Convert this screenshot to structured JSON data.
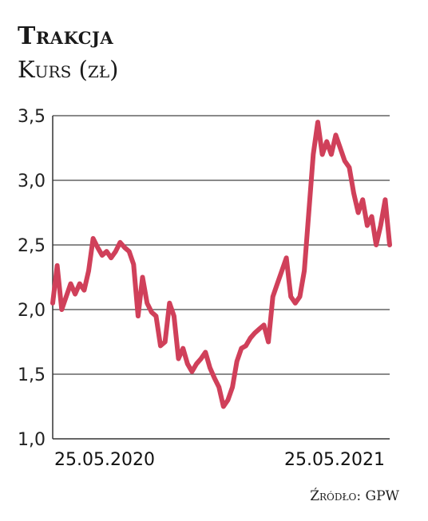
{
  "chart_data": {
    "type": "line",
    "title": "Trakcja",
    "subtitle": "Kurs (zł)",
    "ylim": [
      1.0,
      3.5
    ],
    "y_ticks": [
      "3,5",
      "3,0",
      "2,5",
      "2,0",
      "1,5",
      "1,0"
    ],
    "x_ticks": [
      "25.05.2020",
      "25.05.2021"
    ],
    "grid": "horizontal",
    "line_color": "#d0405a",
    "series": [
      {
        "values": [
          2.05,
          2.34,
          2.0,
          2.1,
          2.2,
          2.12,
          2.2,
          2.15,
          2.3,
          2.55,
          2.48,
          2.42,
          2.45,
          2.4,
          2.45,
          2.52,
          2.48,
          2.45,
          2.35,
          1.95,
          2.25,
          2.05,
          1.98,
          1.95,
          1.72,
          1.75,
          2.05,
          1.95,
          1.62,
          1.7,
          1.58,
          1.52,
          1.58,
          1.62,
          1.67,
          1.55,
          1.47,
          1.4,
          1.25,
          1.3,
          1.4,
          1.6,
          1.7,
          1.72,
          1.78,
          1.82,
          1.85,
          1.88,
          1.75,
          2.1,
          2.2,
          2.3,
          2.4,
          2.1,
          2.05,
          2.1,
          2.3,
          2.75,
          3.2,
          3.45,
          3.2,
          3.3,
          3.2,
          3.35,
          3.25,
          3.15,
          3.1,
          2.9,
          2.75,
          2.85,
          2.65,
          2.72,
          2.5,
          2.65,
          2.85,
          2.5
        ]
      }
    ]
  },
  "source": "Źródło: GPW"
}
